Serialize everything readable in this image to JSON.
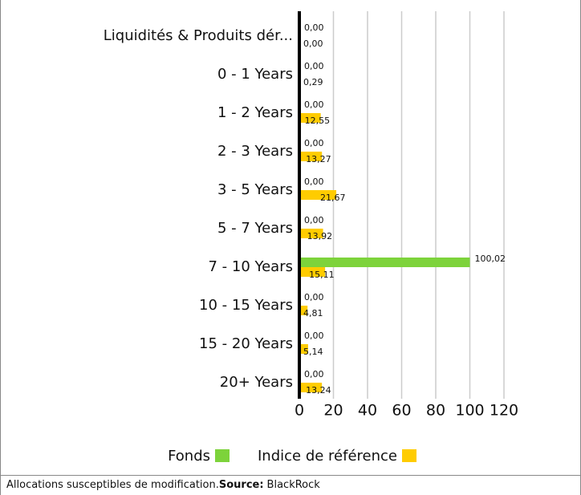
{
  "chart_data": {
    "type": "bar",
    "orientation": "horizontal",
    "categories": [
      "Liquidités & Produits dér...",
      "0 - 1 Years",
      "1 - 2 Years",
      "2 - 3 Years",
      "3 - 5 Years",
      "5 - 7 Years",
      "7 - 10 Years",
      "10 - 15 Years",
      "15 - 20 Years",
      "20+ Years"
    ],
    "series": [
      {
        "name": "Fonds",
        "color": "#7dd33b",
        "values": [
          0,
          0,
          0,
          0,
          0,
          0,
          100.02,
          0,
          0,
          0
        ],
        "value_labels": [
          "0,00",
          "0,00",
          "0,00",
          "0,00",
          "0,00",
          "0,00",
          "100,02",
          "0,00",
          "0,00",
          "0,00"
        ]
      },
      {
        "name": "Indice de référence",
        "color": "#ffcc00",
        "values": [
          0,
          0.29,
          12.55,
          13.27,
          21.67,
          13.92,
          15.11,
          4.81,
          5.14,
          13.24
        ],
        "value_labels": [
          "0,00",
          "0,29",
          "12,55",
          "13,27",
          "21,67",
          "13,92",
          "15,11",
          "4,81",
          "5,14",
          "13,24"
        ]
      }
    ],
    "xlim": [
      0,
      120
    ],
    "xticks": [
      0,
      20,
      40,
      60,
      80,
      100,
      120
    ],
    "grid": true,
    "footer": {
      "note": "Allocations susceptibles de modification.",
      "source_label": "Source:",
      "source": "BlackRock"
    }
  }
}
